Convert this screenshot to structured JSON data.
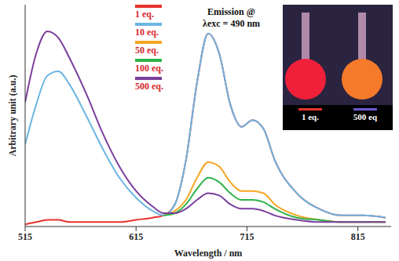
{
  "chart_data": {
    "type": "line",
    "xlabel": "Wavelength / nm",
    "ylabel": "Arbitrary unit (a.u.)",
    "annotations": [
      "Emission @",
      "λexc = 490 nm"
    ],
    "inset_labels": [
      {
        "text": "1 eq.",
        "color": "#e8312a"
      },
      {
        "text": "500 eq",
        "color": "#6a5acd"
      }
    ],
    "x": [
      515,
      525,
      535,
      545,
      555,
      570,
      585,
      600,
      615,
      630,
      640,
      650,
      660,
      670,
      680,
      690,
      700,
      710,
      720,
      730,
      740,
      760,
      780,
      800,
      820,
      840
    ],
    "series": [
      {
        "name": "1 eq.",
        "color": "#e8312a",
        "values": [
          1,
          2,
          3,
          3,
          2,
          2,
          2,
          2,
          3,
          4,
          5,
          10,
          30,
          65,
          87,
          78,
          55,
          45,
          48,
          44,
          30,
          15,
          8,
          5,
          5,
          4
        ]
      },
      {
        "name": "10 eq.",
        "color": "#6cb6e3",
        "values": [
          37,
          55,
          68,
          70,
          64,
          50,
          35,
          22,
          13,
          7,
          5,
          10,
          30,
          65,
          87,
          78,
          55,
          45,
          48,
          44,
          30,
          15,
          8,
          5,
          5,
          4
        ]
      },
      {
        "name": "50 eq.",
        "color": "#f5a623",
        "values": [
          null,
          null,
          null,
          null,
          null,
          null,
          null,
          null,
          null,
          null,
          5,
          7,
          12,
          22,
          29,
          27,
          20,
          16,
          16,
          15,
          10,
          5,
          3,
          2,
          2,
          2
        ]
      },
      {
        "name": "100 eq.",
        "color": "#2db34a",
        "values": [
          null,
          null,
          null,
          null,
          null,
          null,
          null,
          null,
          null,
          null,
          5,
          6,
          10,
          17,
          22,
          20,
          15,
          12,
          12,
          11,
          8,
          4,
          3,
          2,
          2,
          2
        ]
      },
      {
        "name": "500 eq.",
        "color": "#7b3f9c",
        "values": [
          56,
          78,
          88,
          85,
          76,
          60,
          42,
          27,
          16,
          9,
          6,
          6,
          8,
          12,
          15,
          14,
          10,
          8,
          8,
          7,
          5,
          3,
          2,
          2,
          2,
          2
        ]
      }
    ],
    "xlim": [
      515,
      845
    ],
    "xticks": [
      515,
      615,
      715,
      815
    ],
    "ylim": [
      0,
      100
    ],
    "tick_labels": "x",
    "grid": false,
    "legend": "top"
  }
}
